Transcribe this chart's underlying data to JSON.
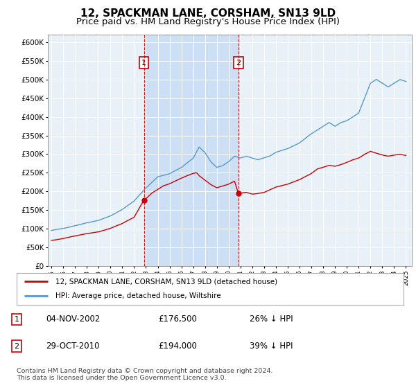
{
  "title": "12, SPACKMAN LANE, CORSHAM, SN13 9LD",
  "subtitle": "Price paid vs. HM Land Registry's House Price Index (HPI)",
  "background_color": "#ffffff",
  "plot_bg_color": "#e8f0f8",
  "shade_color": "#ccdff5",
  "title_fontsize": 11,
  "subtitle_fontsize": 9.5,
  "ylim": [
    0,
    620000
  ],
  "yticks": [
    0,
    50000,
    100000,
    150000,
    200000,
    250000,
    300000,
    350000,
    400000,
    450000,
    500000,
    550000,
    600000
  ],
  "sale1_date": "04-NOV-2002",
  "sale1_price": 176500,
  "sale1_hpi_pct": "26%",
  "sale1_year": 2002.833,
  "sale2_date": "29-OCT-2010",
  "sale2_price": 194000,
  "sale2_hpi_pct": "39%",
  "sale2_year": 2010.833,
  "hpi_color": "#5599cc",
  "price_color": "#cc0000",
  "vline_color": "#cc0000",
  "legend_label1": "12, SPACKMAN LANE, CORSHAM, SN13 9LD (detached house)",
  "legend_label2": "HPI: Average price, detached house, Wiltshire",
  "footer": "Contains HM Land Registry data © Crown copyright and database right 2024.\nThis data is licensed under the Open Government Licence v3.0.",
  "xmin": 1995.0,
  "xmax": 2025.5
}
